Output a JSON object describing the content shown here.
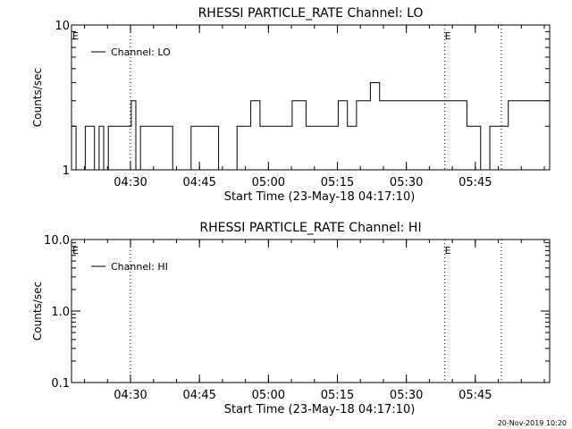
{
  "footer_timestamp": "20-Nov-2019 10:20",
  "chart_data": [
    {
      "type": "line",
      "title": "RHESSI PARTICLE_RATE Channel: LO",
      "xlabel": "Start Time (23-May-18 04:17:10)",
      "ylabel": "Counts/sec",
      "yscale": "log",
      "ylim": [
        1,
        10
      ],
      "yticks": [
        1,
        10
      ],
      "ytick_labels": [
        "1",
        "10"
      ],
      "xticks": [
        "04:30",
        "04:45",
        "05:00",
        "05:15",
        "05:30",
        "05:45"
      ],
      "xlim_minutes": [
        0,
        104
      ],
      "legend": {
        "position": "top-left",
        "entries": [
          "Channel: LO"
        ]
      },
      "series": [
        {
          "name": "Channel: LO",
          "step_minutes": 1,
          "start_minute": 0,
          "values": [
            2,
            1,
            1,
            2,
            2,
            1,
            2,
            1,
            2,
            2,
            2,
            2,
            2,
            3,
            1,
            2,
            2,
            2,
            2,
            2,
            2,
            2,
            1,
            1,
            1,
            1,
            2,
            2,
            2,
            2,
            2,
            2,
            1,
            1,
            1,
            1,
            2,
            2,
            2,
            3,
            3,
            2,
            2,
            2,
            2,
            2,
            2,
            2,
            3,
            3,
            3,
            2,
            2,
            2,
            2,
            2,
            2,
            2,
            3,
            3,
            2,
            2,
            3,
            3,
            3,
            4,
            4,
            3,
            3,
            3,
            3,
            3,
            3,
            3,
            3,
            3,
            3,
            3,
            3,
            3,
            3,
            3,
            3,
            3,
            3,
            3,
            2,
            2,
            2,
            1,
            1,
            2,
            2,
            2,
            2,
            3,
            3,
            3,
            3,
            3,
            3,
            3,
            3,
            3
          ]
        }
      ],
      "markers": [
        {
          "label": "E",
          "minute": 0
        },
        {
          "label": "E",
          "minute": 81
        }
      ],
      "dotted_lines_minutes": [
        12.8,
        81.2,
        93.5
      ]
    },
    {
      "type": "line",
      "title": "RHESSI PARTICLE_RATE Channel: HI",
      "xlabel": "Start Time (23-May-18 04:17:10)",
      "ylabel": "Counts/sec",
      "yscale": "log",
      "ylim": [
        0.1,
        10
      ],
      "yticks": [
        0.1,
        1,
        10
      ],
      "ytick_labels": [
        "0.1",
        "1.0",
        "10.0"
      ],
      "xticks": [
        "04:30",
        "04:45",
        "05:00",
        "05:15",
        "05:30",
        "05:45"
      ],
      "xlim_minutes": [
        0,
        104
      ],
      "legend": {
        "position": "top-left",
        "entries": [
          "Channel: HI"
        ]
      },
      "series": [
        {
          "name": "Channel: HI",
          "values": []
        }
      ],
      "markers": [
        {
          "label": "E",
          "minute": 0
        },
        {
          "label": "E",
          "minute": 81
        }
      ],
      "dotted_lines_minutes": [
        12.8,
        81.2,
        93.5
      ]
    }
  ]
}
